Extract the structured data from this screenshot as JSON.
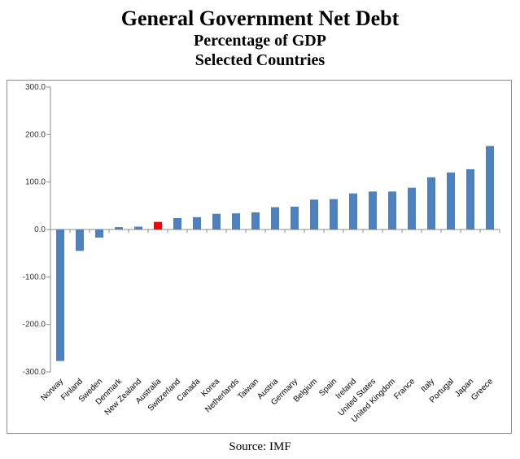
{
  "chart_data": {
    "type": "bar",
    "title": "General Government Net Debt",
    "subtitle": "Percentage of GDP",
    "subtitle2": "Selected Countries",
    "source": "Source: IMF",
    "xlabel": "",
    "ylabel": "",
    "ylim": [
      -300,
      300
    ],
    "yticks": [
      300,
      200,
      100,
      0,
      -100,
      -200,
      -300
    ],
    "ytick_labels": [
      "300.0",
      "200.0",
      "100.0",
      "0.0",
      "-100.0",
      "-200.0",
      "-300.0"
    ],
    "grid": false,
    "bar_color": "#4f81bd",
    "highlight_color": "#ff0000",
    "highlight_category": "Australia",
    "categories": [
      "Norway",
      "Finland",
      "Sweden",
      "Denmark",
      "New Zealand",
      "Australia",
      "Switzerland",
      "Canada",
      "Korea",
      "Netherlands",
      "Taiwan",
      "Austria",
      "Germany",
      "Belgium",
      "Spain",
      "Ireland",
      "United States",
      "United Kingdom",
      "France",
      "Italy",
      "Portugal",
      "Japan",
      "Greece"
    ],
    "values": [
      -277,
      -45,
      -17,
      5,
      6,
      16,
      24,
      26,
      33,
      34,
      36,
      47,
      48,
      63,
      64,
      76,
      80,
      80,
      88,
      110,
      120,
      127,
      176
    ]
  }
}
